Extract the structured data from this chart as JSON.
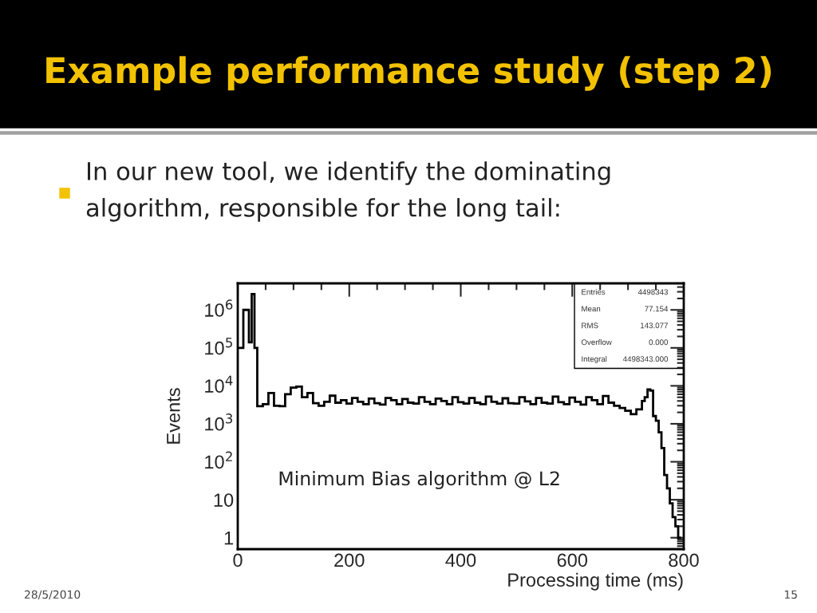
{
  "chart_data": {
    "type": "histogram",
    "title": "Example performance study (step 2)",
    "xlabel": "Processing time (ms)",
    "ylabel": "Events",
    "color": "#000000",
    "log": "y",
    "xlim": [
      0,
      800
    ],
    "xticks": [
      0,
      200,
      400,
      600,
      800
    ],
    "ylim": [
      0.5,
      5000000
    ],
    "yticks": [
      1,
      10,
      {
        "value": 100,
        "label": "10$^{2}$"
      },
      {
        "value": 1000,
        "label": "10$^{3}$"
      },
      {
        "value": 10000,
        "label": "10$^{4}$"
      },
      {
        "value": 100000,
        "label": "10$^{5}$"
      },
      {
        "value": 1000000,
        "label": "10$^{6}$"
      }
    ],
    "bins": [
      0,
      5,
      10,
      15,
      20,
      25,
      30,
      35,
      45,
      55,
      65,
      75,
      85,
      95,
      105,
      115,
      125,
      135,
      145,
      155,
      165,
      175,
      185,
      195,
      205,
      215,
      225,
      235,
      245,
      255,
      265,
      275,
      285,
      295,
      305,
      315,
      325,
      335,
      345,
      355,
      365,
      375,
      385,
      395,
      405,
      415,
      425,
      435,
      445,
      455,
      465,
      475,
      485,
      495,
      505,
      515,
      525,
      535,
      545,
      555,
      565,
      575,
      585,
      595,
      605,
      615,
      625,
      635,
      645,
      655,
      665,
      675,
      685,
      695,
      705,
      715,
      725,
      730,
      735,
      740,
      745,
      750,
      755,
      760,
      765,
      770,
      775,
      780,
      785,
      790,
      795
    ],
    "values": [
      100000,
      100000,
      1000000,
      1000000,
      140000,
      2600000,
      100000,
      2900,
      3300,
      6500,
      3000,
      2900,
      6000,
      9000,
      9500,
      5000,
      6500,
      3500,
      3000,
      3800,
      5500,
      3600,
      4200,
      3400,
      4800,
      3800,
      3300,
      4600,
      3500,
      3200,
      4800,
      4200,
      3300,
      4500,
      3600,
      3400,
      5000,
      3800,
      3300,
      4600,
      4000,
      3300,
      5000,
      3700,
      3400,
      4800,
      3600,
      3300,
      5200,
      3800,
      3400,
      4700,
      3500,
      3400,
      5000,
      3900,
      3300,
      4800,
      3600,
      3400,
      5200,
      3700,
      3300,
      4900,
      3800,
      3200,
      5000,
      4200,
      3300,
      5400,
      3600,
      3000,
      2600,
      2200,
      1800,
      2400,
      4000,
      5000,
      8000,
      7500,
      1600,
      1200,
      600,
      230,
      45,
      20,
      8,
      3.5,
      2,
      1
    ],
    "annotations": [
      "In our new tool, we identify the dominating\nalgorithm, responsible for the long tail:",
      "Minimum Bias algorithm @ L2",
      "Entries",
      "4498343",
      "Mean",
      "77.154",
      "RMS",
      "143.077",
      "Overflow",
      "0.000",
      "Integral",
      "4498343.000",
      "28/5/2010",
      "15"
    ]
  }
}
